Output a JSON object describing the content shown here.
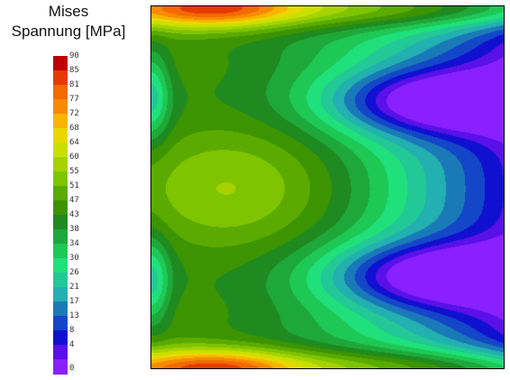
{
  "chart_data": {
    "type": "heatmap",
    "title_line1": "Mises",
    "title_line2": "Spannung [MPa]",
    "colorbar": {
      "ticks": [
        "90",
        "85",
        "81",
        "77",
        "72",
        "68",
        "64",
        "60",
        "55",
        "51",
        "47",
        "43",
        "38",
        "34",
        "30",
        "26",
        "21",
        "17",
        "13",
        "8",
        "4",
        "0"
      ],
      "colors": [
        "#c00000",
        "#e63a00",
        "#f26a00",
        "#f78a00",
        "#f7b400",
        "#e8d800",
        "#c8e000",
        "#a6d200",
        "#7ec400",
        "#5aaa00",
        "#3c9400",
        "#1f8a1f",
        "#1ea83a",
        "#1ec855",
        "#1fe07a",
        "#22c896",
        "#22b0b0",
        "#1a7ab8",
        "#1446c8",
        "#1010d0",
        "#5a10e8",
        "#8a20ff"
      ]
    },
    "field_min": 0,
    "field_max": 90,
    "field_description_levels": {
      "top_edge_peak": 90,
      "bottom_edge_peak": 90,
      "left_center_lobe": 55,
      "right_edge_min": 0
    }
  }
}
